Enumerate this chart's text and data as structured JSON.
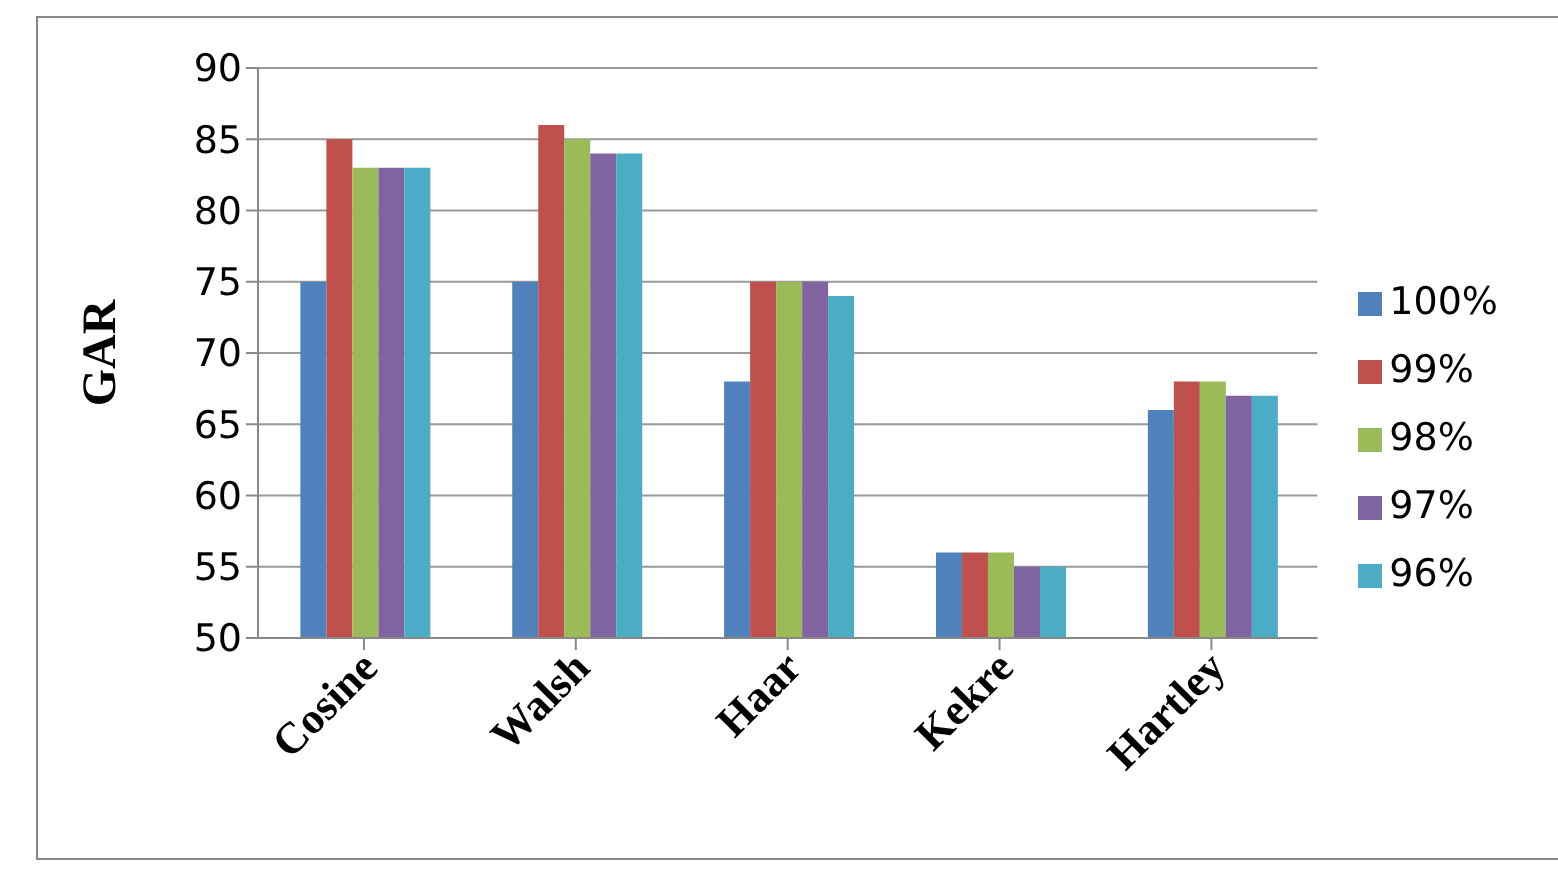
{
  "chart_data": {
    "type": "bar",
    "ylabel": "GAR",
    "categories": [
      "Cosine",
      "Walsh",
      "Haar",
      "Kekre",
      "Hartley"
    ],
    "series": [
      {
        "name": "100%",
        "color": "#4f81bd",
        "values": [
          75,
          75,
          68,
          56,
          66
        ]
      },
      {
        "name": "99%",
        "color": "#c0504d",
        "values": [
          85,
          86,
          75,
          56,
          68
        ]
      },
      {
        "name": "98%",
        "color": "#9bbb59",
        "values": [
          83,
          85,
          75,
          56,
          68
        ]
      },
      {
        "name": "97%",
        "color": "#8064a2",
        "values": [
          83,
          84,
          75,
          55,
          67
        ]
      },
      {
        "name": "96%",
        "color": "#4bacc6",
        "values": [
          83,
          84,
          74,
          55,
          67
        ]
      }
    ],
    "ylim": [
      50,
      90
    ],
    "yticks": [
      50,
      55,
      60,
      65,
      70,
      75,
      80,
      85,
      90
    ],
    "grid": "y",
    "legend": "right"
  }
}
